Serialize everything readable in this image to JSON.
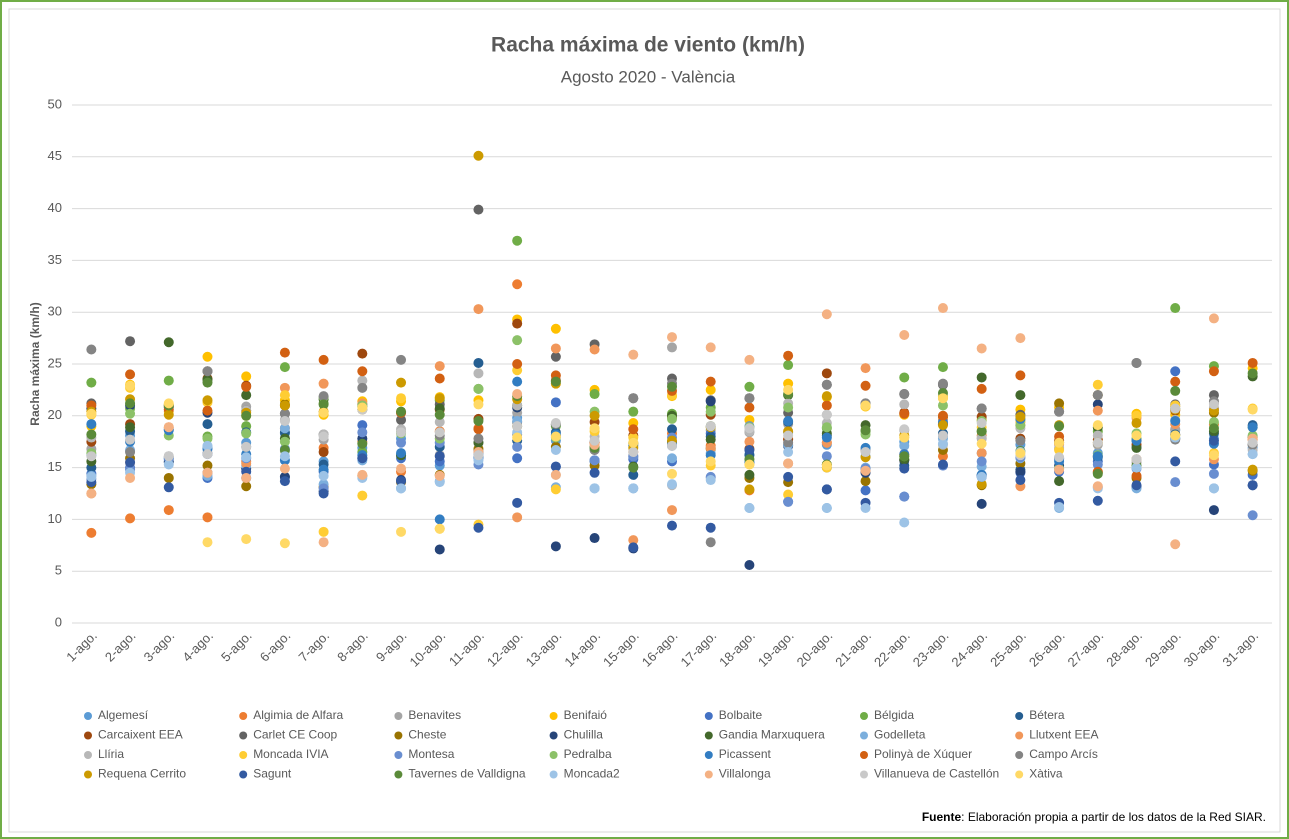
{
  "chart_data": {
    "type": "scatter",
    "title": "Racha máxima de viento (km/h)",
    "subtitle": "Agosto 2020 - València",
    "y_label": "Racha máxima (km/h)",
    "source_label": "Fuente",
    "source_text": ": Elaboración propia a partir de los datos de la Red SIAR.",
    "ylim": [
      0,
      50
    ],
    "yticks": [
      0,
      5,
      10,
      15,
      20,
      25,
      30,
      35,
      40,
      45,
      50
    ],
    "grid": true,
    "legend": "bottom",
    "categories": [
      "1-ago.",
      "2-ago.",
      "3-ago.",
      "4-ago.",
      "5-ago.",
      "6-ago.",
      "7-ago.",
      "8-ago.",
      "9-ago.",
      "10-ago.",
      "11-ago.",
      "12-ago.",
      "13-ago.",
      "14-ago.",
      "15-ago.",
      "16-ago.",
      "17-ago.",
      "18-ago.",
      "19-ago.",
      "20-ago.",
      "21-ago.",
      "22-ago.",
      "23-ago.",
      "24-ago.",
      "25-ago.",
      "26-ago.",
      "27-ago.",
      "28-ago.",
      "29-ago.",
      "30-ago.",
      "31-ago."
    ],
    "series": [
      {
        "name": "Algemesí",
        "color": "#5B9BD5",
        "values": [
          16.2,
          18.1,
          15.8,
          17.0,
          17.4,
          18.3,
          15.6,
          16.9,
          17.8,
          15.2,
          16.3,
          19.8,
          17.6,
          16.8,
          16.0,
          17.1,
          16.9,
          16.3,
          18.4,
          17.2,
          16.1,
          17.5,
          18.0,
          16.4,
          17.2,
          15.9,
          16.4,
          17.0,
          18.6,
          17.8,
          16.9
        ]
      },
      {
        "name": "Algimia de Alfara",
        "color": "#ED7D31",
        "values": [
          8.7,
          10.1,
          10.9,
          10.2,
          15.6,
          18.8,
          16.9,
          17.5,
          14.6,
          18.5,
          18.8,
          32.7,
          18.1,
          17.4,
          16.5,
          18.3,
          17.1,
          12.8,
          17.8,
          17.4,
          14.7,
          16.2,
          16.1,
          18.1,
          19.1,
          17.4,
          16.1,
          15.8,
          18.2,
          19.2,
          17.7
        ]
      },
      {
        "name": "Benavites",
        "color": "#A5A5A5",
        "values": [
          16.8,
          16.6,
          16.1,
          16.4,
          20.9,
          19.6,
          17.7,
          20.6,
          18.4,
          16.2,
          17.4,
          20.3,
          19.1,
          16.7,
          16.2,
          26.6,
          18.6,
          18.4,
          19.2,
          20.1,
          16.6,
          18.6,
          19.2,
          17.8,
          19.4,
          16.8,
          17.2,
          15.5,
          18.7,
          21.2,
          18.0
        ]
      },
      {
        "name": "Benifaió",
        "color": "#FFC000",
        "values": [
          19.0,
          23.0,
          21.1,
          25.7,
          23.8,
          21.5,
          20.1,
          21.4,
          21.4,
          21.8,
          21.5,
          29.3,
          28.4,
          22.5,
          19.3,
          21.9,
          22.5,
          19.6,
          23.1,
          21.8,
          20.9,
          20.1,
          21.7,
          19.6,
          20.6,
          20.8,
          22.0,
          20.2,
          20.1,
          20.7,
          24.6
        ]
      },
      {
        "name": "Bolbaite",
        "color": "#4472C4",
        "values": [
          14.4,
          15.0,
          18.7,
          14.0,
          14.0,
          14.1,
          14.6,
          19.1,
          15.9,
          15.6,
          15.9,
          15.9,
          21.3,
          15.7,
          15.8,
          15.6,
          18.3,
          15.5,
          11.7,
          15.0,
          12.8,
          12.2,
          15.2,
          14.2,
          14.5,
          14.6,
          15.6,
          13.2,
          24.3,
          15.3,
          14.3
        ]
      },
      {
        "name": "Bélgida",
        "color": "#70AD47",
        "values": [
          23.2,
          20.7,
          23.4,
          18.0,
          19.0,
          24.7,
          21.2,
          16.5,
          18.4,
          21.5,
          22.6,
          36.9,
          19.0,
          22.1,
          20.4,
          20.2,
          20.8,
          22.8,
          24.9,
          18.8,
          18.5,
          23.7,
          24.7,
          18.5,
          19.6,
          17.4,
          18.5,
          17.8,
          30.4,
          24.8,
          18.9
        ]
      },
      {
        "name": "Bétera",
        "color": "#255E91",
        "values": [
          15.0,
          18.5,
          15.6,
          19.2,
          18.4,
          18.4,
          15.3,
          15.9,
          16.2,
          17.0,
          25.1,
          17.6,
          18.4,
          15.6,
          14.3,
          18.7,
          18.0,
          16.2,
          19.4,
          18.1,
          14.9,
          15.2,
          18.3,
          14.3,
          14.8,
          15.9,
          16.0,
          17.6,
          18.2,
          18.3,
          19.1
        ]
      },
      {
        "name": "Carcaixent EEA",
        "color": "#9E480E",
        "values": [
          17.5,
          19.2,
          20.9,
          23.6,
          22.9,
          21.0,
          16.5,
          26.0,
          20.3,
          20.6,
          19.7,
          28.9,
          23.4,
          19.4,
          18.1,
          19.9,
          20.1,
          16.8,
          17.7,
          24.1,
          16.7,
          20.3,
          19.8,
          19.9,
          17.8,
          17.6,
          17.7,
          17.2,
          20.5,
          20.7,
          17.9
        ]
      },
      {
        "name": "Carlet CE Coop",
        "color": "#636363",
        "values": [
          21.2,
          27.2,
          20.8,
          24.3,
          20.5,
          20.2,
          18.2,
          21.1,
          19.6,
          21.1,
          39.9,
          19.4,
          25.7,
          26.9,
          21.7,
          23.6,
          21.5,
          21.7,
          20.3,
          23.0,
          21.2,
          22.1,
          23.0,
          20.7,
          20.1,
          20.4,
          22.0,
          25.1,
          21.1,
          22.0,
          17.2
        ]
      },
      {
        "name": "Cheste",
        "color": "#997300",
        "values": [
          13.4,
          15.9,
          14.0,
          15.2,
          13.2,
          21.1,
          13.1,
          14.2,
          13.6,
          14.3,
          16.8,
          19.0,
          17.0,
          15.2,
          17.3,
          17.5,
          16.8,
          14.0,
          13.6,
          15.3,
          13.7,
          15.7,
          16.7,
          13.3,
          15.4,
          21.2,
          14.5,
          14.0,
          20.9,
          20.3,
          14.7
        ]
      },
      {
        "name": "Chulilla",
        "color": "#264478",
        "values": [
          20.7,
          21.0,
          15.5,
          20.3,
          14.9,
          14.1,
          12.7,
          17.8,
          13.8,
          7.1,
          16.5,
          20.8,
          7.4,
          8.2,
          7.2,
          17.5,
          21.4,
          5.6,
          17.1,
          12.9,
          14.5,
          15.7,
          19.2,
          11.5,
          14.6,
          15.2,
          21.1,
          13.1,
          17.8,
          10.9,
          13.3
        ]
      },
      {
        "name": "Gandia Marxuquera",
        "color": "#43682B",
        "values": [
          15.6,
          18.9,
          27.1,
          23.5,
          22.0,
          17.8,
          21.6,
          20.9,
          16.2,
          20.7,
          17.4,
          21.0,
          19.2,
          17.0,
          15.1,
          20.0,
          17.7,
          14.3,
          22.0,
          18.3,
          19.1,
          15.8,
          19.8,
          23.7,
          22.0,
          13.7,
          18.9,
          16.9,
          20.7,
          18.5,
          23.8
        ]
      },
      {
        "name": "Godelleta",
        "color": "#7CAFDD",
        "values": [
          14.2,
          16.7,
          15.9,
          14.2,
          15.2,
          18.8,
          13.4,
          15.7,
          13.0,
          13.7,
          16.3,
          19.5,
          13.1,
          13.0,
          13.0,
          15.9,
          16.4,
          11.1,
          17.2,
          11.1,
          15.0,
          17.1,
          17.8,
          15.1,
          15.9,
          11.1,
          13.1,
          13.0,
          17.9,
          13.0,
          16.3
        ]
      },
      {
        "name": "Llutxent EEA",
        "color": "#F1975A",
        "values": [
          12.5,
          15.5,
          18.9,
          14.5,
          15.4,
          22.7,
          23.1,
          21.2,
          20.4,
          24.8,
          30.3,
          10.2,
          26.5,
          26.4,
          8.0,
          10.9,
          16.9,
          17.5,
          15.4,
          17.4,
          24.6,
          16.3,
          19.7,
          16.4,
          13.2,
          17.2,
          20.5,
          19.8,
          19.2,
          15.8,
          17.7
        ]
      },
      {
        "name": "Llíria",
        "color": "#B7B7B7",
        "values": [
          17.9,
          17.6,
          16.0,
          16.9,
          20.5,
          16.6,
          18.2,
          23.4,
          18.7,
          19.4,
          24.1,
          21.0,
          14.3,
          18.0,
          16.1,
          13.3,
          14.0,
          18.5,
          21.2,
          19.3,
          16.7,
          21.1,
          17.2,
          17.9,
          18.8,
          16.9,
          18.1,
          15.8,
          19.6,
          20.8,
          16.7
        ]
      },
      {
        "name": "Moncada IVIA",
        "color": "#FFCD33",
        "values": [
          20.1,
          22.7,
          20.4,
          21.3,
          20.0,
          22.0,
          8.8,
          12.3,
          21.7,
          9.1,
          9.5,
          24.4,
          12.9,
          18.5,
          17.9,
          22.0,
          15.2,
          15.3,
          12.4,
          15.0,
          20.9,
          17.9,
          21.9,
          18.9,
          19.4,
          16.7,
          23.0,
          20.0,
          21.0,
          16.4,
          20.7
        ]
      },
      {
        "name": "Montesa",
        "color": "#698ED0",
        "values": [
          13.9,
          14.8,
          15.9,
          14.5,
          15.9,
          16.8,
          13.0,
          18.4,
          17.4,
          17.4,
          15.3,
          17.0,
          15.1,
          15.7,
          16.1,
          17.9,
          14.1,
          19.0,
          11.7,
          16.1,
          14.9,
          12.2,
          15.2,
          15.6,
          16.0,
          15.8,
          15.3,
          14.9,
          13.6,
          14.4,
          10.4
        ]
      },
      {
        "name": "Pedralba",
        "color": "#8CC168",
        "values": [
          16.4,
          20.2,
          18.1,
          17.8,
          18.3,
          17.5,
          21.8,
          21.0,
          18.3,
          17.8,
          22.6,
          27.3,
          17.9,
          20.4,
          17.4,
          19.7,
          20.4,
          18.9,
          20.8,
          18.9,
          18.2,
          16.1,
          21.0,
          19.5,
          19.1,
          14.9,
          16.2,
          18.3,
          18.1,
          19.4,
          18.1
        ]
      },
      {
        "name": "Picassent",
        "color": "#327DC2",
        "values": [
          19.2,
          17.5,
          18.6,
          16.8,
          16.3,
          15.7,
          14.8,
          16.2,
          16.4,
          10.0,
          16.1,
          23.3,
          18.2,
          17.5,
          17.1,
          17.3,
          16.2,
          15.5,
          19.5,
          17.9,
          16.9,
          16.3,
          19.4,
          14.3,
          19.7,
          15.6,
          16.1,
          17.6,
          19.5,
          17.3,
          18.9
        ]
      },
      {
        "name": "Polinyà de Xúquer",
        "color": "#D26012",
        "values": [
          21.0,
          24.0,
          20.6,
          20.5,
          22.8,
          26.1,
          25.4,
          24.3,
          20.3,
          23.6,
          18.7,
          25.0,
          23.9,
          17.4,
          18.7,
          22.4,
          23.3,
          20.8,
          25.8,
          21.0,
          22.9,
          20.2,
          20.0,
          22.6,
          23.9,
          18.0,
          14.6,
          14.2,
          23.3,
          24.3,
          25.1
        ]
      },
      {
        "name": "Campo Arcís",
        "color": "#848484",
        "values": [
          26.4,
          16.5,
          21.0,
          24.3,
          17.0,
          20.2,
          21.9,
          22.7,
          25.4,
          18.1,
          17.8,
          18.2,
          19.2,
          16.7,
          21.7,
          23.1,
          7.8,
          21.7,
          17.4,
          23.0,
          21.2,
          22.1,
          23.1,
          20.7,
          17.6,
          20.4,
          22.0,
          25.1,
          17.7,
          21.4,
          17.2
        ]
      },
      {
        "name": "Requena Cerrito",
        "color": "#CC9A00",
        "values": [
          20.4,
          21.6,
          20.1,
          21.5,
          20.3,
          21.0,
          20.4,
          20.6,
          23.2,
          21.7,
          45.1,
          21.6,
          23.1,
          20.0,
          16.9,
          17.6,
          18.9,
          12.9,
          18.5,
          21.9,
          16.0,
          18.1,
          19.1,
          13.4,
          19.9,
          19.1,
          17.4,
          19.3,
          20.6,
          20.5,
          14.8
        ]
      },
      {
        "name": "Sagunt",
        "color": "#335AA1",
        "values": [
          13.6,
          15.5,
          13.1,
          16.3,
          14.6,
          13.7,
          12.5,
          15.9,
          13.7,
          16.1,
          9.2,
          11.6,
          15.1,
          14.5,
          7.3,
          9.4,
          9.2,
          16.7,
          14.1,
          12.9,
          11.6,
          14.9,
          15.3,
          14.1,
          13.8,
          11.6,
          11.8,
          13.3,
          15.6,
          17.6,
          13.3
        ]
      },
      {
        "name": "Tavernes de Valldigna",
        "color": "#5A8A39",
        "values": [
          18.2,
          21.2,
          21.0,
          23.2,
          20.0,
          16.7,
          21.1,
          17.3,
          20.4,
          20.1,
          19.5,
          21.9,
          23.3,
          16.9,
          15.0,
          22.8,
          19.0,
          15.8,
          22.1,
          15.3,
          18.6,
          16.1,
          22.2,
          18.5,
          16.6,
          19.0,
          14.4,
          15.2,
          22.4,
          18.8,
          24.1
        ]
      },
      {
        "name": "Moncada2",
        "color": "#9DC3E6",
        "values": [
          14.1,
          14.5,
          15.3,
          17.1,
          16.0,
          16.1,
          14.2,
          14.0,
          13.0,
          13.6,
          15.7,
          18.4,
          16.7,
          13.0,
          13.0,
          13.4,
          13.8,
          11.1,
          16.5,
          11.1,
          11.1,
          9.7,
          17.3,
          14.1,
          16.5,
          11.2,
          13.0,
          15.0,
          17.9,
          13.0,
          16.3
        ]
      },
      {
        "name": "Villalonga",
        "color": "#F4B183",
        "values": [
          12.5,
          14.0,
          18.9,
          14.5,
          14.0,
          14.9,
          7.8,
          14.3,
          14.9,
          14.2,
          16.5,
          22.1,
          14.3,
          17.2,
          25.9,
          27.6,
          26.6,
          25.4,
          15.4,
          29.8,
          14.7,
          27.8,
          30.4,
          26.5,
          27.5,
          14.8,
          13.2,
          15.8,
          7.6,
          29.4,
          17.8
        ]
      },
      {
        "name": "Villanueva de Castellón",
        "color": "#C9C9C9",
        "values": [
          16.1,
          17.7,
          16.1,
          16.3,
          17.0,
          19.5,
          18.0,
          20.6,
          18.4,
          18.4,
          16.2,
          19.0,
          19.3,
          17.6,
          16.5,
          17.1,
          19.0,
          18.8,
          18.1,
          20.1,
          16.5,
          18.7,
          18.1,
          19.3,
          16.2,
          16.0,
          17.4,
          15.8,
          20.7,
          21.1,
          17.4
        ]
      },
      {
        "name": "Xàtiva",
        "color": "#FFD966",
        "values": [
          20.2,
          22.9,
          21.2,
          7.8,
          8.1,
          7.7,
          20.3,
          20.8,
          8.8,
          9.1,
          21.1,
          17.9,
          18.0,
          18.8,
          17.4,
          14.4,
          15.6,
          15.3,
          22.5,
          15.2,
          21.0,
          17.9,
          21.7,
          17.3,
          16.4,
          17.4,
          19.1,
          18.1,
          18.1,
          16.2,
          20.6
        ]
      }
    ]
  }
}
